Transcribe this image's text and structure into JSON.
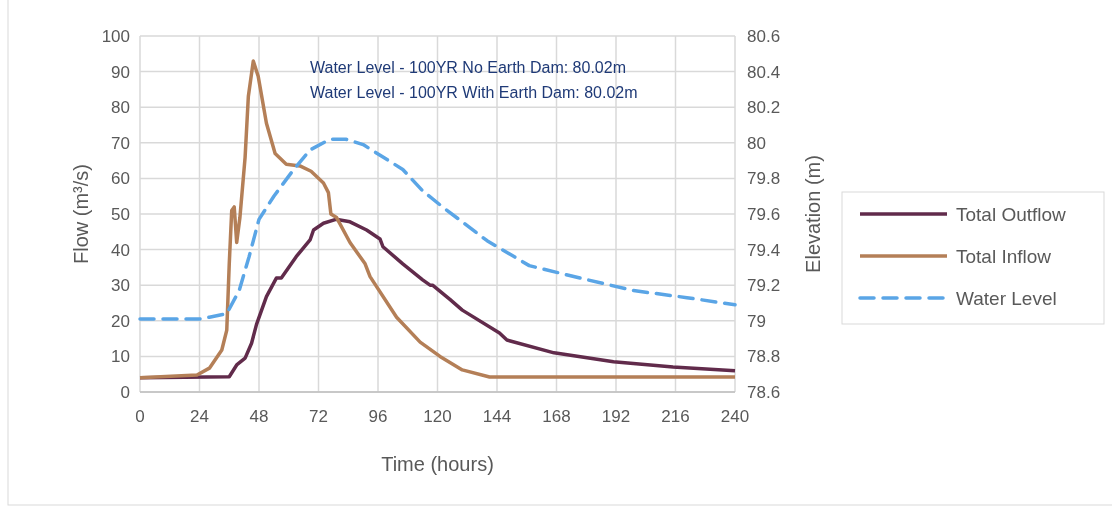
{
  "chart_data": {
    "type": "line",
    "xlabel": "Time (hours)",
    "ylabel": "Flow (m³/s)",
    "y2label": "Elevation (m)",
    "annotations": [
      "Water Level - 100YR No Earth Dam: 80.02m",
      "Water Level - 100YR With Earth Dam: 80.02m"
    ],
    "xlim": [
      0,
      240
    ],
    "xticks": [
      0,
      24,
      48,
      72,
      96,
      120,
      144,
      168,
      192,
      216,
      240
    ],
    "ylim": [
      0,
      100
    ],
    "yticks": [
      0,
      10,
      20,
      30,
      40,
      50,
      60,
      70,
      80,
      90,
      100
    ],
    "y2lim": [
      78.6,
      80.6
    ],
    "y2ticks": [
      {
        "value": 78.6,
        "label": "78.6"
      },
      {
        "value": 78.8,
        "label": "78.8"
      },
      {
        "value": 79,
        "label": "79"
      },
      {
        "value": 79.2,
        "label": "79.2"
      },
      {
        "value": 79.4,
        "label": "79.4"
      },
      {
        "value": 79.6,
        "label": "79.6"
      },
      {
        "value": 79.8,
        "label": "79.8"
      },
      {
        "value": 80,
        "label": "80"
      },
      {
        "value": 80.2,
        "label": "80.2"
      },
      {
        "value": 80.4,
        "label": "80.4"
      },
      {
        "value": 80.6,
        "label": "80.6"
      }
    ],
    "grid": true,
    "legend": "right",
    "marker": "none",
    "series": [
      {
        "name": "Total Outflow",
        "color": "#612b4b",
        "line_style": "solid",
        "x": [
          0,
          36,
          39,
          42.4,
          45,
          47,
          51,
          55,
          57,
          63,
          68.6,
          70,
          74,
          79,
          84.7,
          91.4,
          96.8,
          98,
          106,
          114,
          117,
          118,
          125,
          130,
          145,
          148,
          167,
          191,
          215,
          240
        ],
        "values": [
          4,
          4.3,
          7.6,
          9.5,
          13.7,
          19,
          26.8,
          32,
          32,
          38,
          42.7,
          45.5,
          47.4,
          48.5,
          47.8,
          45.5,
          43,
          40.8,
          36,
          31.5,
          30,
          30,
          26,
          23,
          16.6,
          14.6,
          11,
          8.5,
          7,
          6
        ]
      },
      {
        "name": "Total Inflow",
        "color": "#b47f57",
        "line_style": "solid",
        "x": [
          0,
          23,
          28,
          33,
          35,
          36,
          37,
          38,
          39,
          40.3,
          42.4,
          43.7,
          45.7,
          47.7,
          51,
          54.5,
          59,
          64.5,
          69,
          74,
          76,
          77,
          79.3,
          84.7,
          90.8,
          92.8,
          103.5,
          113,
          121,
          130,
          141,
          240
        ],
        "values": [
          4,
          4.8,
          6.7,
          11.8,
          17.4,
          36,
          51,
          52,
          42,
          49,
          66,
          83,
          93,
          88.6,
          75.5,
          67,
          64,
          63.5,
          62,
          58.7,
          56,
          50,
          49,
          42,
          36,
          32.4,
          21,
          14,
          10,
          6.2,
          4.2,
          4.2
        ]
      },
      {
        "name": "Water Level",
        "color": "#5aa5e6",
        "line_style": "dashed",
        "axis": "y2",
        "x": [
          0,
          24,
          28,
          35,
          40,
          44,
          48,
          54,
          62,
          68.6,
          76.6,
          83,
          90,
          98,
          106,
          114,
          122,
          140,
          157,
          177.5,
          199,
          220.6,
          240
        ],
        "values": [
          79.01,
          79.01,
          79.02,
          79.04,
          79.17,
          79.36,
          79.57,
          79.7,
          79.85,
          79.96,
          80.02,
          80.02,
          79.99,
          79.92,
          79.85,
          79.73,
          79.64,
          79.45,
          79.31,
          79.24,
          79.17,
          79.13,
          79.09
        ]
      }
    ]
  }
}
